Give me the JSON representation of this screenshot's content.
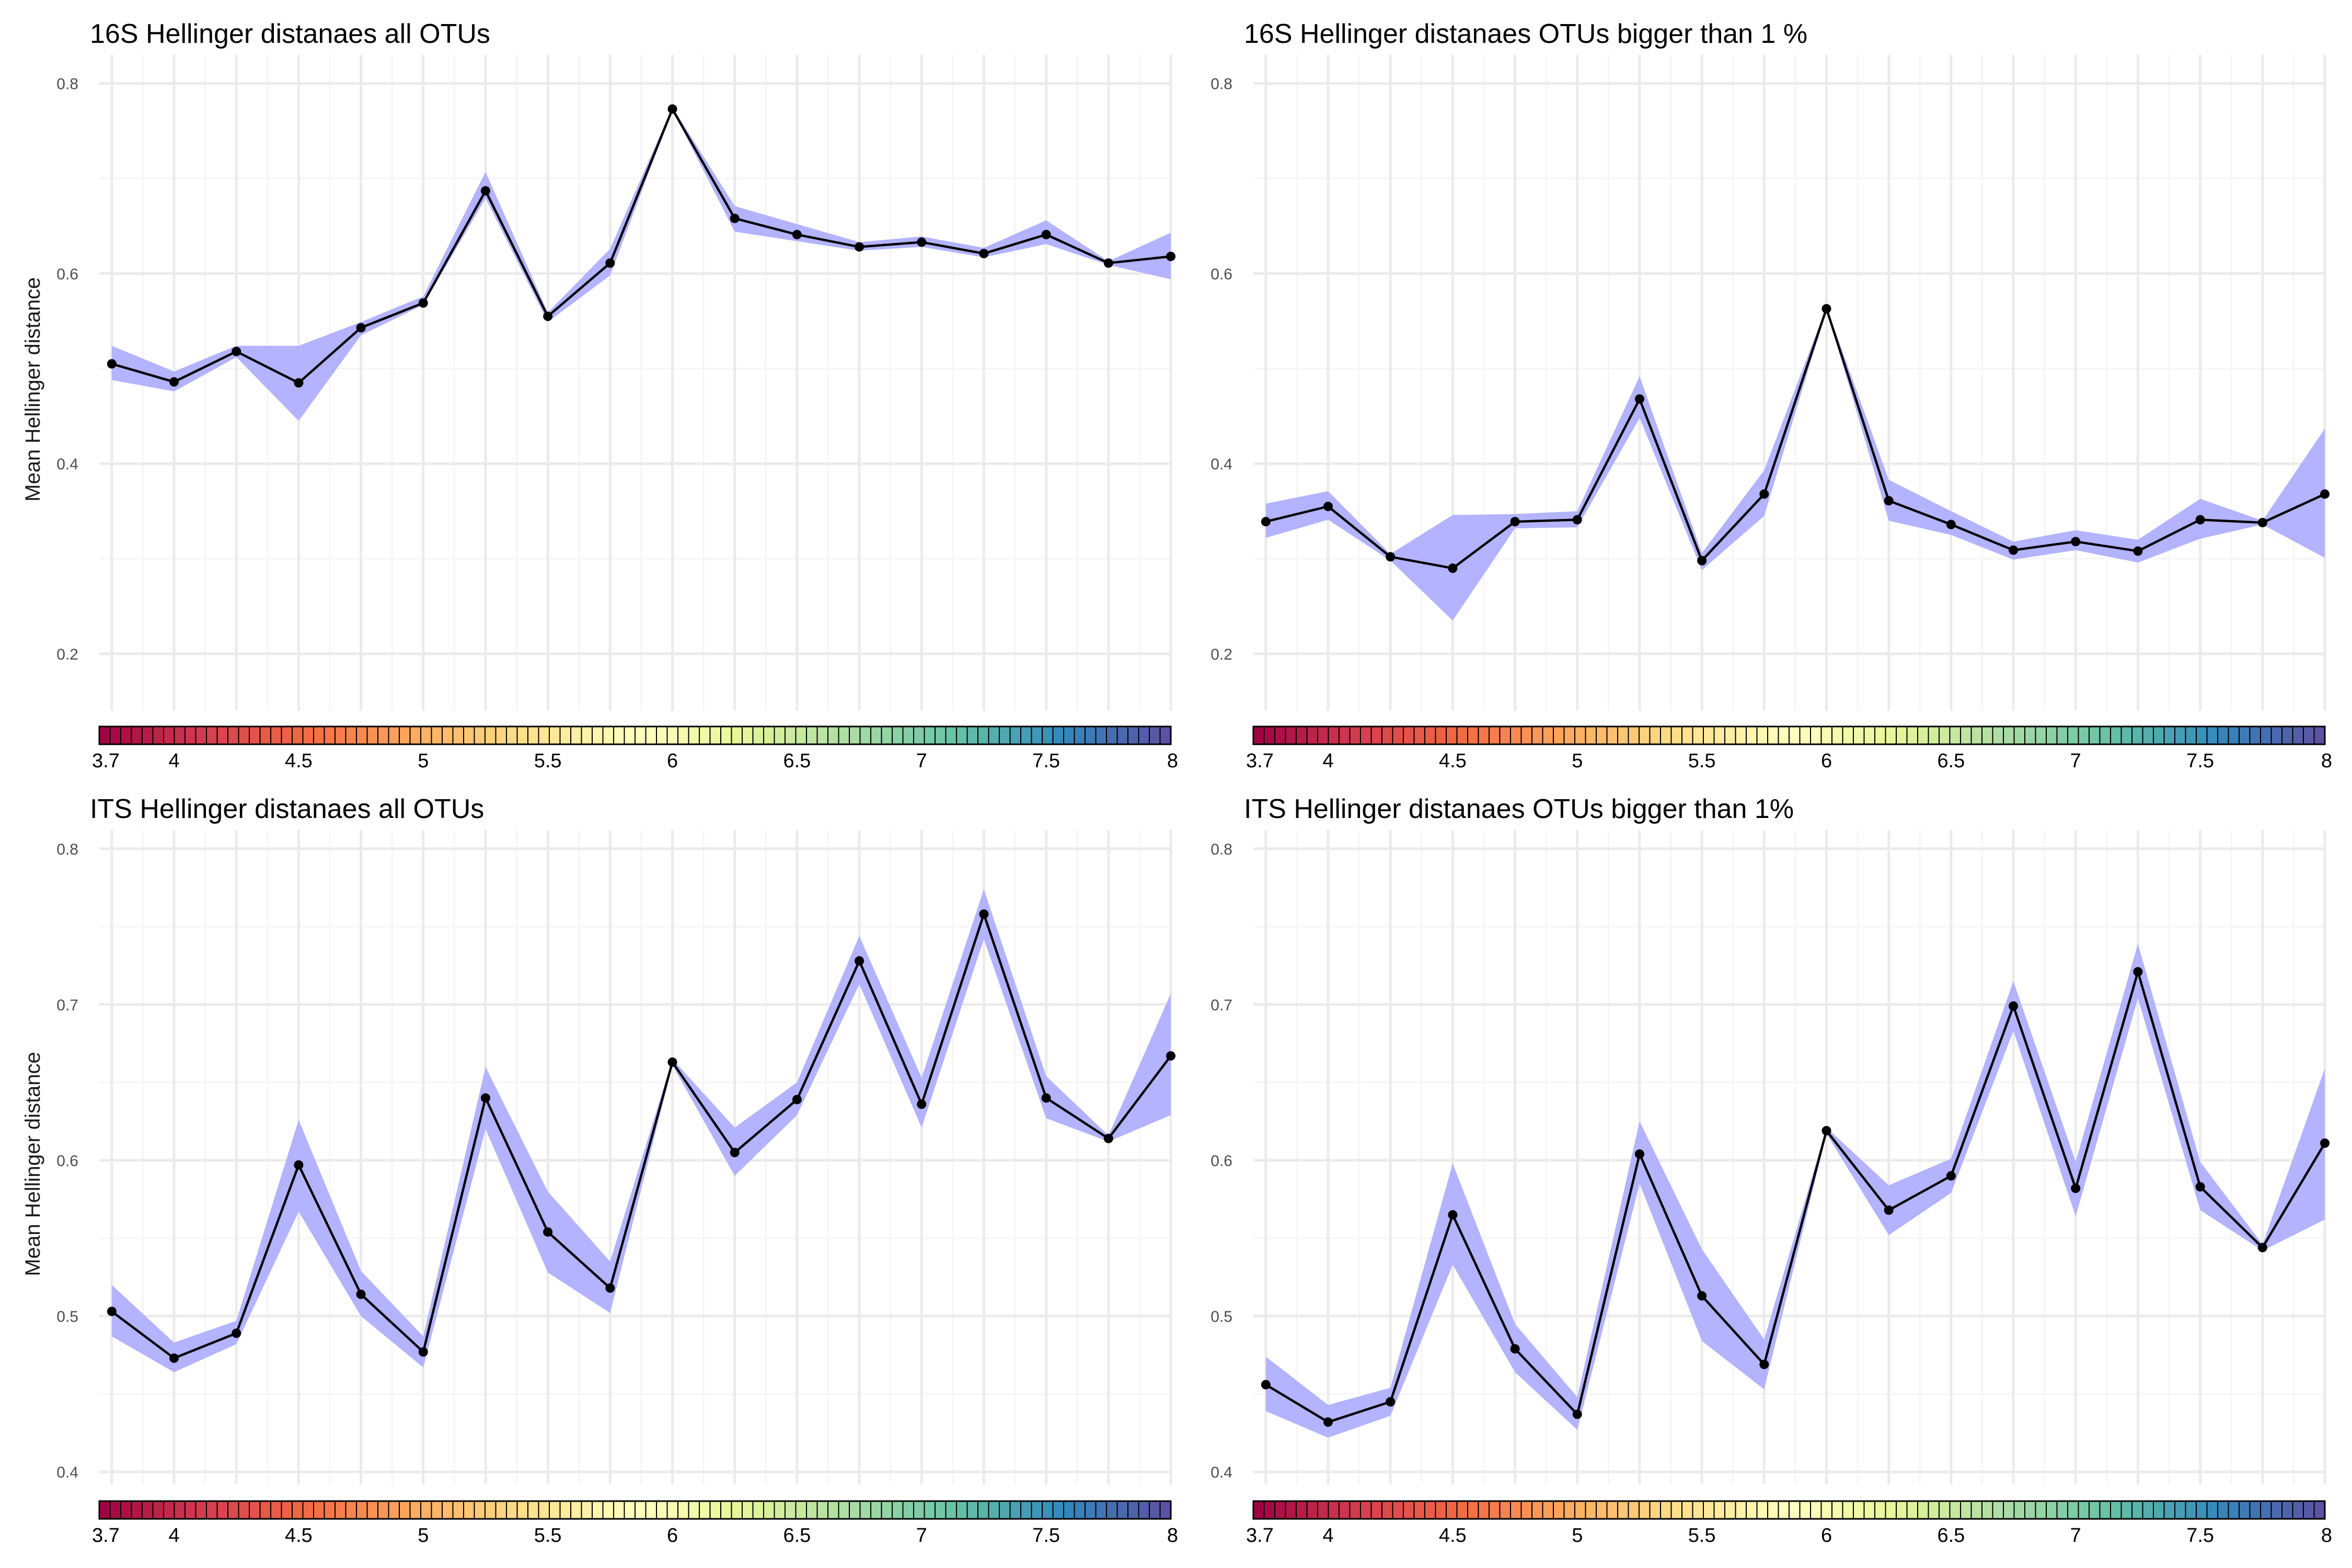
{
  "colors": {
    "ribbon": "#b3b3ff",
    "line": "#000000",
    "grid_major": "#ebebeb",
    "grid_minor": "#f5f5f5",
    "spectral": [
      "#9e0142",
      "#d53e4f",
      "#f46d43",
      "#fdae61",
      "#fee08b",
      "#ffffbf",
      "#e6f598",
      "#abdda4",
      "#66c2a5",
      "#3288bd",
      "#5e4fa2"
    ]
  },
  "chart_data": [
    {
      "type": "line",
      "title": "16S Hellinger distanaes all OTUs",
      "ylabel": "Mean Hellinger distance",
      "ylim": [
        0.14,
        0.83
      ],
      "yticks": [
        0.2,
        0.4,
        0.6,
        0.8
      ],
      "ytick_labels": [
        "0.2",
        "0.4",
        "0.6",
        "0.8"
      ],
      "x": [
        3.75,
        4.0,
        4.25,
        4.5,
        4.75,
        5.0,
        5.25,
        5.5,
        5.75,
        6.0,
        6.25,
        6.5,
        6.75,
        7.0,
        7.25,
        7.5,
        7.75,
        8.0
      ],
      "series": [
        {
          "values": [
            0.505,
            0.486,
            0.518,
            0.485,
            0.543,
            0.569,
            0.687,
            0.555,
            0.611,
            0.773,
            0.658,
            0.641,
            0.628,
            0.633,
            0.621,
            0.641,
            0.611,
            0.618
          ],
          "lower": [
            0.488,
            0.476,
            0.512,
            0.445,
            0.535,
            0.567,
            0.679,
            0.549,
            0.598,
            0.772,
            0.644,
            0.634,
            0.624,
            0.628,
            0.617,
            0.631,
            0.609,
            0.594
          ],
          "upper": [
            0.524,
            0.497,
            0.524,
            0.524,
            0.549,
            0.576,
            0.707,
            0.559,
            0.626,
            0.775,
            0.671,
            0.652,
            0.633,
            0.639,
            0.627,
            0.656,
            0.613,
            0.643
          ]
        }
      ],
      "colorbar": {
        "range": [
          3.7,
          8
        ],
        "tick_values": [
          3.7,
          4,
          4.5,
          5,
          5.5,
          6,
          6.5,
          7,
          7.5,
          8
        ],
        "tick_labels": [
          "3.7",
          "4",
          "4.5",
          "5",
          "5.5",
          "6",
          "6.5",
          "7",
          "7.5",
          "8"
        ]
      }
    },
    {
      "type": "line",
      "title": "16S Hellinger distanaes OTUs bigger than 1 %",
      "ylabel": "",
      "ylim": [
        0.14,
        0.83
      ],
      "yticks": [
        0.2,
        0.4,
        0.6,
        0.8
      ],
      "ytick_labels": [
        "0.2",
        "0.4",
        "0.6",
        "0.8"
      ],
      "x": [
        3.75,
        4.0,
        4.25,
        4.5,
        4.75,
        5.0,
        5.25,
        5.5,
        5.75,
        6.0,
        6.25,
        6.5,
        6.75,
        7.0,
        7.25,
        7.5,
        7.75,
        8.0
      ],
      "series": [
        {
          "values": [
            0.339,
            0.355,
            0.302,
            0.29,
            0.339,
            0.341,
            0.468,
            0.298,
            0.368,
            0.563,
            0.361,
            0.336,
            0.309,
            0.318,
            0.308,
            0.341,
            0.338,
            0.368
          ],
          "lower": [
            0.322,
            0.341,
            0.298,
            0.235,
            0.332,
            0.333,
            0.448,
            0.288,
            0.345,
            0.562,
            0.34,
            0.325,
            0.299,
            0.309,
            0.296,
            0.321,
            0.336,
            0.301
          ],
          "upper": [
            0.358,
            0.371,
            0.305,
            0.346,
            0.347,
            0.35,
            0.492,
            0.306,
            0.393,
            0.565,
            0.383,
            0.35,
            0.318,
            0.33,
            0.32,
            0.363,
            0.34,
            0.437
          ]
        }
      ],
      "colorbar": {
        "range": [
          3.7,
          8
        ],
        "tick_values": [
          3.7,
          4,
          4.5,
          5,
          5.5,
          6,
          6.5,
          7,
          7.5,
          8
        ],
        "tick_labels": [
          "3.7",
          "4",
          "4.5",
          "5",
          "5.5",
          "6",
          "6.5",
          "7",
          "7.5",
          "8"
        ]
      }
    },
    {
      "type": "line",
      "title": "ITS Hellinger distanaes all OTUs",
      "ylabel": "Mean Hellinger distance",
      "ylim": [
        0.392,
        0.812
      ],
      "yticks": [
        0.4,
        0.5,
        0.6,
        0.7,
        0.8
      ],
      "ytick_labels": [
        "0.4",
        "0.5",
        "0.6",
        "0.7",
        "0.8"
      ],
      "x": [
        3.75,
        4.0,
        4.25,
        4.5,
        4.75,
        5.0,
        5.25,
        5.5,
        5.75,
        6.0,
        6.25,
        6.5,
        6.75,
        7.0,
        7.25,
        7.5,
        7.75,
        8.0
      ],
      "series": [
        {
          "values": [
            0.503,
            0.473,
            0.489,
            0.597,
            0.514,
            0.477,
            0.64,
            0.554,
            0.518,
            0.663,
            0.605,
            0.639,
            0.728,
            0.636,
            0.758,
            0.64,
            0.614,
            0.667
          ],
          "lower": [
            0.487,
            0.464,
            0.482,
            0.567,
            0.5,
            0.467,
            0.62,
            0.528,
            0.502,
            0.661,
            0.59,
            0.629,
            0.713,
            0.621,
            0.742,
            0.627,
            0.612,
            0.629
          ],
          "upper": [
            0.52,
            0.483,
            0.497,
            0.626,
            0.529,
            0.487,
            0.66,
            0.58,
            0.535,
            0.665,
            0.621,
            0.65,
            0.744,
            0.653,
            0.774,
            0.654,
            0.616,
            0.707
          ]
        }
      ],
      "colorbar": {
        "range": [
          3.7,
          8
        ],
        "tick_values": [
          3.7,
          4,
          4.5,
          5,
          5.5,
          6,
          6.5,
          7,
          7.5,
          8
        ],
        "tick_labels": [
          "3.7",
          "4",
          "4.5",
          "5",
          "5.5",
          "6",
          "6.5",
          "7",
          "7.5",
          "8"
        ]
      }
    },
    {
      "type": "line",
      "title": "ITS Hellinger distanaes OTUs bigger than 1%",
      "ylabel": "",
      "ylim": [
        0.392,
        0.812
      ],
      "yticks": [
        0.4,
        0.5,
        0.6,
        0.7,
        0.8
      ],
      "ytick_labels": [
        "0.4",
        "0.5",
        "0.6",
        "0.7",
        "0.8"
      ],
      "x": [
        3.75,
        4.0,
        4.25,
        4.5,
        4.75,
        5.0,
        5.25,
        5.5,
        5.75,
        6.0,
        6.25,
        6.5,
        6.75,
        7.0,
        7.25,
        7.5,
        7.75,
        8.0
      ],
      "series": [
        {
          "values": [
            0.456,
            0.432,
            0.445,
            0.565,
            0.479,
            0.437,
            0.604,
            0.513,
            0.469,
            0.619,
            0.568,
            0.59,
            0.699,
            0.582,
            0.721,
            0.583,
            0.544,
            0.611
          ],
          "lower": [
            0.439,
            0.422,
            0.436,
            0.533,
            0.464,
            0.427,
            0.585,
            0.484,
            0.453,
            0.617,
            0.552,
            0.579,
            0.683,
            0.564,
            0.704,
            0.568,
            0.542,
            0.562
          ],
          "upper": [
            0.474,
            0.443,
            0.454,
            0.598,
            0.495,
            0.448,
            0.625,
            0.543,
            0.485,
            0.621,
            0.584,
            0.601,
            0.715,
            0.599,
            0.739,
            0.599,
            0.546,
            0.659
          ]
        }
      ],
      "colorbar": {
        "range": [
          3.7,
          8
        ],
        "tick_values": [
          3.7,
          4,
          4.5,
          5,
          5.5,
          6,
          6.5,
          7,
          7.5,
          8
        ],
        "tick_labels": [
          "3.7",
          "4",
          "4.5",
          "5",
          "5.5",
          "6",
          "6.5",
          "7",
          "7.5",
          "8"
        ]
      }
    }
  ]
}
